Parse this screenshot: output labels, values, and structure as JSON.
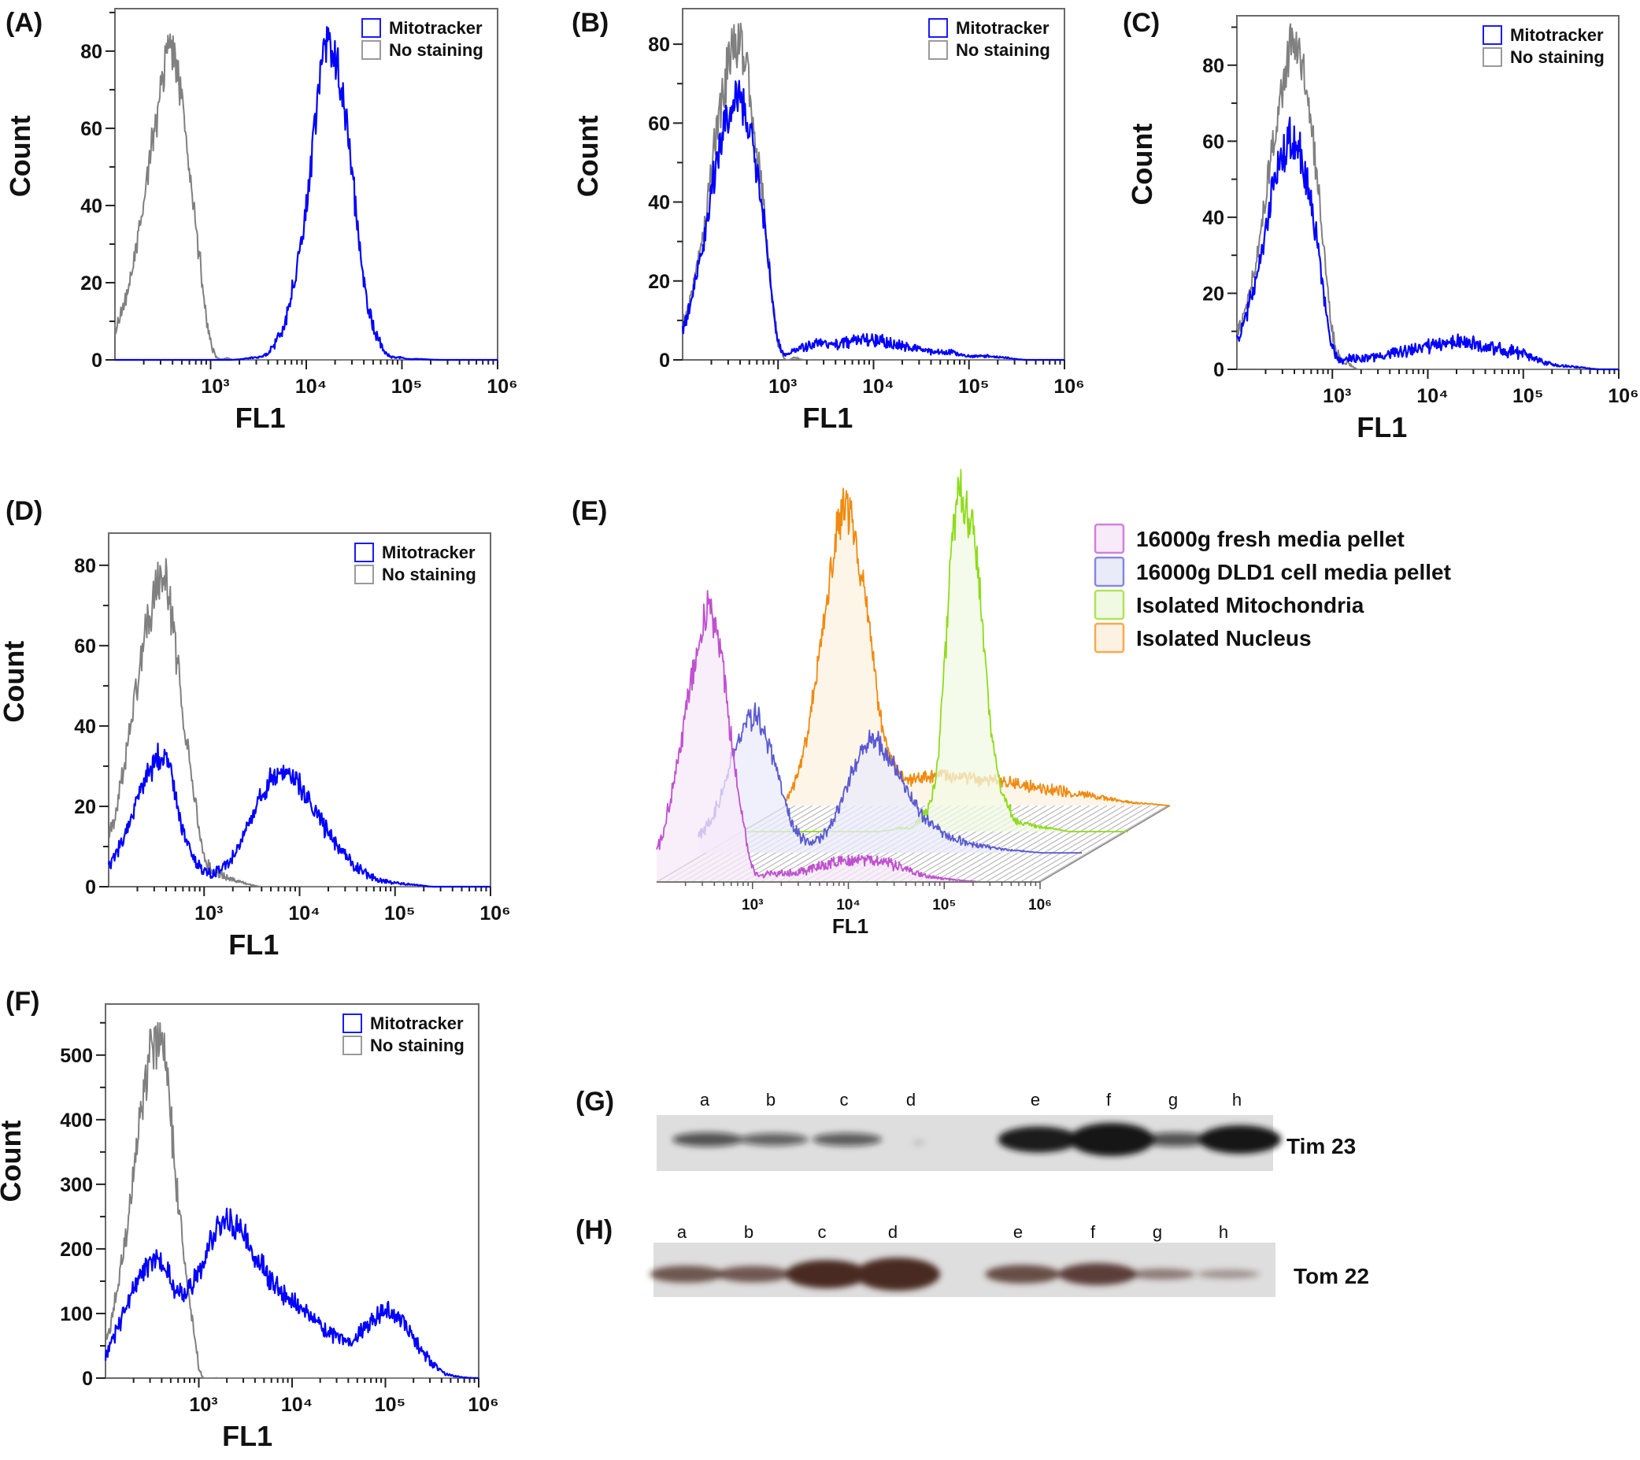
{
  "chart_data": [
    {
      "panel": "A",
      "label": "(A)",
      "type": "line",
      "xlabel": "FL1",
      "ylabel": "Count",
      "xscale": "log",
      "xlim": [
        100,
        1000000
      ],
      "ylim": [
        0,
        91
      ],
      "yticks": [
        0,
        20,
        40,
        60,
        80
      ],
      "xtick_labels": [
        "10³",
        "10⁴",
        "10⁵",
        "10⁶"
      ],
      "xtick_values": [
        1000,
        10000,
        100000,
        1000000
      ],
      "legend_placement": "top-right",
      "grid": false,
      "x": [
        100,
        158,
        251,
        398,
        631,
        1000,
        1585,
        2512,
        3981,
        6310,
        10000,
        15849,
        25119,
        39811,
        63096,
        100000,
        158489,
        251189,
        398107,
        630957,
        1000000
      ],
      "series": [
        {
          "name": "Mitotracker",
          "color": "#0000ff",
          "values": [
            0,
            0,
            0,
            0,
            0,
            0,
            0,
            0.5,
            2,
            12,
            40,
            82,
            65,
            20,
            3,
            0.5,
            0.2,
            0,
            0,
            0,
            0
          ]
        },
        {
          "name": "No staining",
          "color": "#808080",
          "values": [
            8,
            25,
            58,
            80,
            45,
            5,
            0.3,
            0,
            0,
            0,
            0,
            0,
            0,
            0,
            0,
            0,
            0,
            0,
            0,
            0,
            0
          ]
        }
      ]
    },
    {
      "panel": "B",
      "label": "(B)",
      "type": "line",
      "xlabel": "FL1",
      "ylabel": "Count",
      "xscale": "log",
      "xlim": [
        100,
        1000000
      ],
      "ylim": [
        0,
        89
      ],
      "yticks": [
        0,
        20,
        40,
        60,
        80
      ],
      "xtick_labels": [
        "10³",
        "10⁴",
        "10⁵",
        "10⁶"
      ],
      "xtick_values": [
        1000,
        10000,
        100000,
        1000000
      ],
      "legend_placement": "top-right",
      "grid": false,
      "x": [
        100,
        158,
        251,
        398,
        631,
        1000,
        1585,
        2512,
        3981,
        6310,
        10000,
        15849,
        25119,
        39811,
        63096,
        100000,
        158489,
        251189,
        398107,
        630957,
        1000000
      ],
      "series": [
        {
          "name": "Mitotracker",
          "color": "#0000ff",
          "values": [
            8,
            28,
            55,
            65,
            45,
            5,
            3,
            4,
            4,
            5,
            5,
            4,
            3,
            2,
            2,
            1,
            1,
            0.5,
            0,
            0,
            0
          ]
        },
        {
          "name": "No staining",
          "color": "#808080",
          "values": [
            10,
            30,
            65,
            80,
            50,
            5,
            0.5,
            0,
            0,
            0,
            0,
            0,
            0,
            0,
            0,
            0,
            0,
            0,
            0,
            0,
            0
          ]
        }
      ]
    },
    {
      "panel": "C",
      "label": "(C)",
      "type": "line",
      "xlabel": "FL1",
      "ylabel": "Count",
      "xscale": "log",
      "xlim": [
        100,
        1000000
      ],
      "ylim": [
        0,
        93
      ],
      "yticks": [
        0,
        20,
        40,
        60,
        80
      ],
      "xtick_labels": [
        "10³",
        "10⁴",
        "10⁵",
        "10⁶"
      ],
      "xtick_values": [
        1000,
        10000,
        100000,
        1000000
      ],
      "legend_placement": "top-right",
      "grid": false,
      "x": [
        100,
        158,
        251,
        398,
        631,
        1000,
        1585,
        2512,
        3981,
        6310,
        10000,
        15849,
        25119,
        39811,
        63096,
        100000,
        158489,
        251189,
        398107,
        630957,
        1000000
      ],
      "series": [
        {
          "name": "Mitotracker",
          "color": "#0000ff",
          "values": [
            8,
            24,
            50,
            60,
            40,
            6,
            3,
            3,
            4,
            5,
            6,
            7,
            7,
            6,
            5,
            4,
            2,
            1,
            0.5,
            0,
            0
          ]
        },
        {
          "name": "No staining",
          "color": "#808080",
          "values": [
            10,
            28,
            62,
            85,
            60,
            10,
            1,
            0,
            0,
            0,
            0,
            0,
            0,
            0,
            0,
            0,
            0,
            0,
            0,
            0,
            0
          ]
        }
      ]
    },
    {
      "panel": "D",
      "label": "(D)",
      "type": "line",
      "xlabel": "FL1",
      "ylabel": "Count",
      "xscale": "log",
      "xlim": [
        100,
        1000000
      ],
      "ylim": [
        0,
        88
      ],
      "yticks": [
        0,
        20,
        40,
        60,
        80
      ],
      "xtick_labels": [
        "10³",
        "10⁴",
        "10⁵",
        "10⁶"
      ],
      "xtick_values": [
        1000,
        10000,
        100000,
        1000000
      ],
      "legend_placement": "top-right",
      "grid": false,
      "x": [
        100,
        158,
        251,
        398,
        631,
        1000,
        1585,
        2512,
        3981,
        6310,
        10000,
        15849,
        25119,
        39811,
        63096,
        100000,
        158489,
        251189,
        398107,
        630957,
        1000000
      ],
      "series": [
        {
          "name": "Mitotracker",
          "color": "#0000ff",
          "values": [
            5,
            15,
            27,
            32,
            12,
            4,
            5,
            12,
            22,
            29,
            25,
            17,
            10,
            5,
            2,
            1,
            0.5,
            0,
            0,
            0,
            0
          ]
        },
        {
          "name": "No staining",
          "color": "#808080",
          "values": [
            12,
            35,
            65,
            75,
            40,
            8,
            3,
            1,
            0,
            0,
            0,
            0,
            0,
            0,
            0,
            0,
            0,
            0,
            0,
            0,
            0
          ]
        }
      ]
    },
    {
      "panel": "E",
      "label": "(E)",
      "type": "area",
      "xlabel": "FL1",
      "xscale": "log",
      "xlim": [
        100,
        1000000
      ],
      "xtick_labels": [
        "10³",
        "10⁴",
        "10⁵",
        "10⁶"
      ],
      "xtick_values": [
        1000,
        10000,
        100000,
        1000000
      ],
      "legend_placement": "right",
      "grid": false,
      "layout": "3d-offset",
      "x": [
        100,
        158,
        251,
        398,
        631,
        1000,
        1585,
        2512,
        3981,
        6310,
        10000,
        15849,
        25119,
        39811,
        63096,
        100000,
        158489,
        251189,
        398107,
        630957,
        1000000
      ],
      "series": [
        {
          "name": "16000g fresh media pellet",
          "color": "#c050d0",
          "fill": "#f7eaf9",
          "values": [
            10,
            35,
            70,
            85,
            40,
            5,
            3,
            3,
            4,
            6,
            7,
            7,
            6,
            4,
            2,
            1,
            0.5,
            0,
            0,
            0,
            0
          ]
        },
        {
          "name": "16000g DLD1 cell media pellet",
          "color": "#5a5ad2",
          "fill": "#eaebf9",
          "values": [
            5,
            15,
            35,
            43,
            28,
            8,
            4,
            10,
            25,
            36,
            30,
            18,
            10,
            6,
            3,
            2,
            1,
            0.5,
            0,
            0,
            0
          ]
        },
        {
          "name": "Isolated Mitochondria",
          "color": "#8edc1a",
          "fill": "#f1f9e3",
          "values": [
            0,
            0,
            0,
            0,
            0,
            0,
            0,
            0,
            1,
            3,
            20,
            100,
            90,
            25,
            5,
            2,
            1,
            0,
            0,
            0,
            0
          ]
        },
        {
          "name": "Isolated Nucleus",
          "color": "#f08a10",
          "fill": "#fdf1e2",
          "values": [
            2,
            20,
            60,
            95,
            70,
            25,
            10,
            9,
            10,
            9,
            8,
            8,
            7,
            6,
            5,
            4,
            3,
            2,
            1,
            0.5,
            0
          ]
        }
      ]
    },
    {
      "panel": "F",
      "label": "(F)",
      "type": "line",
      "xlabel": "FL1",
      "ylabel": "Count",
      "xscale": "log",
      "xlim": [
        100,
        1000000
      ],
      "ylim": [
        0,
        579
      ],
      "yticks": [
        0,
        100,
        200,
        300,
        400,
        500
      ],
      "xtick_labels": [
        "10³",
        "10⁴",
        "10⁵",
        "10⁶"
      ],
      "xtick_values": [
        1000,
        10000,
        100000,
        1000000
      ],
      "legend_placement": "top-right",
      "grid": false,
      "x": [
        100,
        158,
        251,
        398,
        631,
        1000,
        1585,
        2512,
        3981,
        6310,
        10000,
        15849,
        25119,
        39811,
        63096,
        100000,
        158489,
        251189,
        398107,
        630957,
        1000000
      ],
      "series": [
        {
          "name": "Mitotracker",
          "color": "#0000ff",
          "values": [
            40,
            100,
            165,
            180,
            130,
            160,
            230,
            240,
            190,
            150,
            120,
            95,
            70,
            55,
            80,
            105,
            85,
            40,
            10,
            2,
            0
          ]
        },
        {
          "name": "No staining",
          "color": "#808080",
          "values": [
            60,
            200,
            430,
            520,
            250,
            20,
            0,
            0,
            0,
            0,
            0,
            0,
            0,
            0,
            0,
            0,
            0,
            0,
            0,
            0,
            0
          ]
        }
      ]
    }
  ],
  "blots": [
    {
      "label": "(G)",
      "target": "Tim 23",
      "band_color": "#141414",
      "lanes": [
        "a",
        "b",
        "c",
        "d",
        "e",
        "f",
        "g",
        "h"
      ],
      "band_intensity": [
        0.5,
        0.42,
        0.45,
        0.04,
        0.85,
        1.0,
        0.5,
        0.9
      ]
    },
    {
      "label": "(H)",
      "target": "Tom 22",
      "band_color": "#4a2a22",
      "lanes": [
        "a",
        "b",
        "c",
        "d",
        "e",
        "f",
        "g",
        "h"
      ],
      "band_intensity": [
        0.6,
        0.58,
        0.9,
        1.0,
        0.65,
        0.75,
        0.35,
        0.2
      ]
    }
  ]
}
